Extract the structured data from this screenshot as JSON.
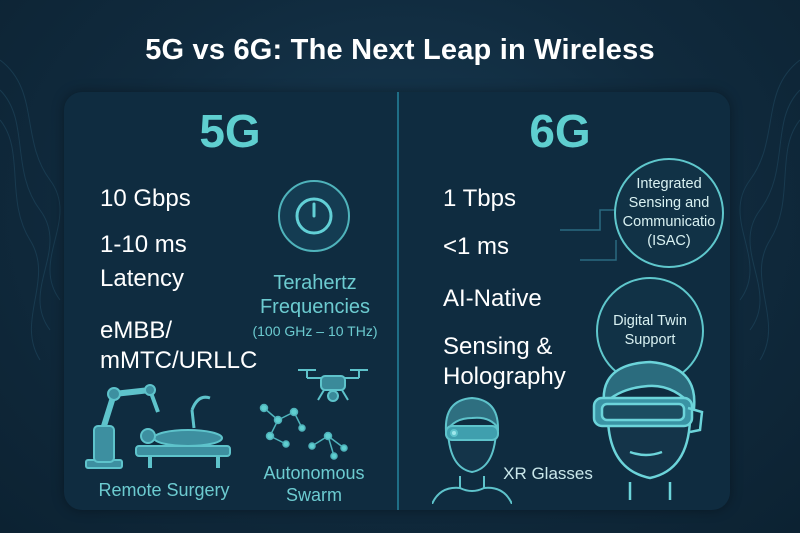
{
  "title": "5G vs 6G: The Next Leap in Wireless",
  "left": {
    "heading": "5G",
    "specs": [
      "10 Gbps",
      "1-10 ms",
      "Latency",
      "eMBB/",
      "mMTC/URLLC"
    ],
    "terahertz": {
      "line1": "Terahertz",
      "line2": "Frequencies",
      "line3": "(100 GHz – 10 THz)"
    },
    "remote_surgery": "Remote Surgery",
    "swarm": {
      "line1": "Autonomous",
      "line2": "Swarm"
    }
  },
  "right": {
    "heading": "6G",
    "specs": [
      "1 Tbps",
      "<1 ms",
      "AI-Native",
      "Sensing &",
      "Holography"
    ],
    "isac": {
      "line1": "Integrated",
      "line2": "Sensing and",
      "line3": "Communicatio",
      "line4": "(ISAC)"
    },
    "twin": {
      "line1": "Digital Twin",
      "line2": "Support"
    },
    "xr": "XR Glasses"
  },
  "colors": {
    "accent": "#5fcfd0",
    "panel": "#0f2c40",
    "background": "#102a3d"
  }
}
